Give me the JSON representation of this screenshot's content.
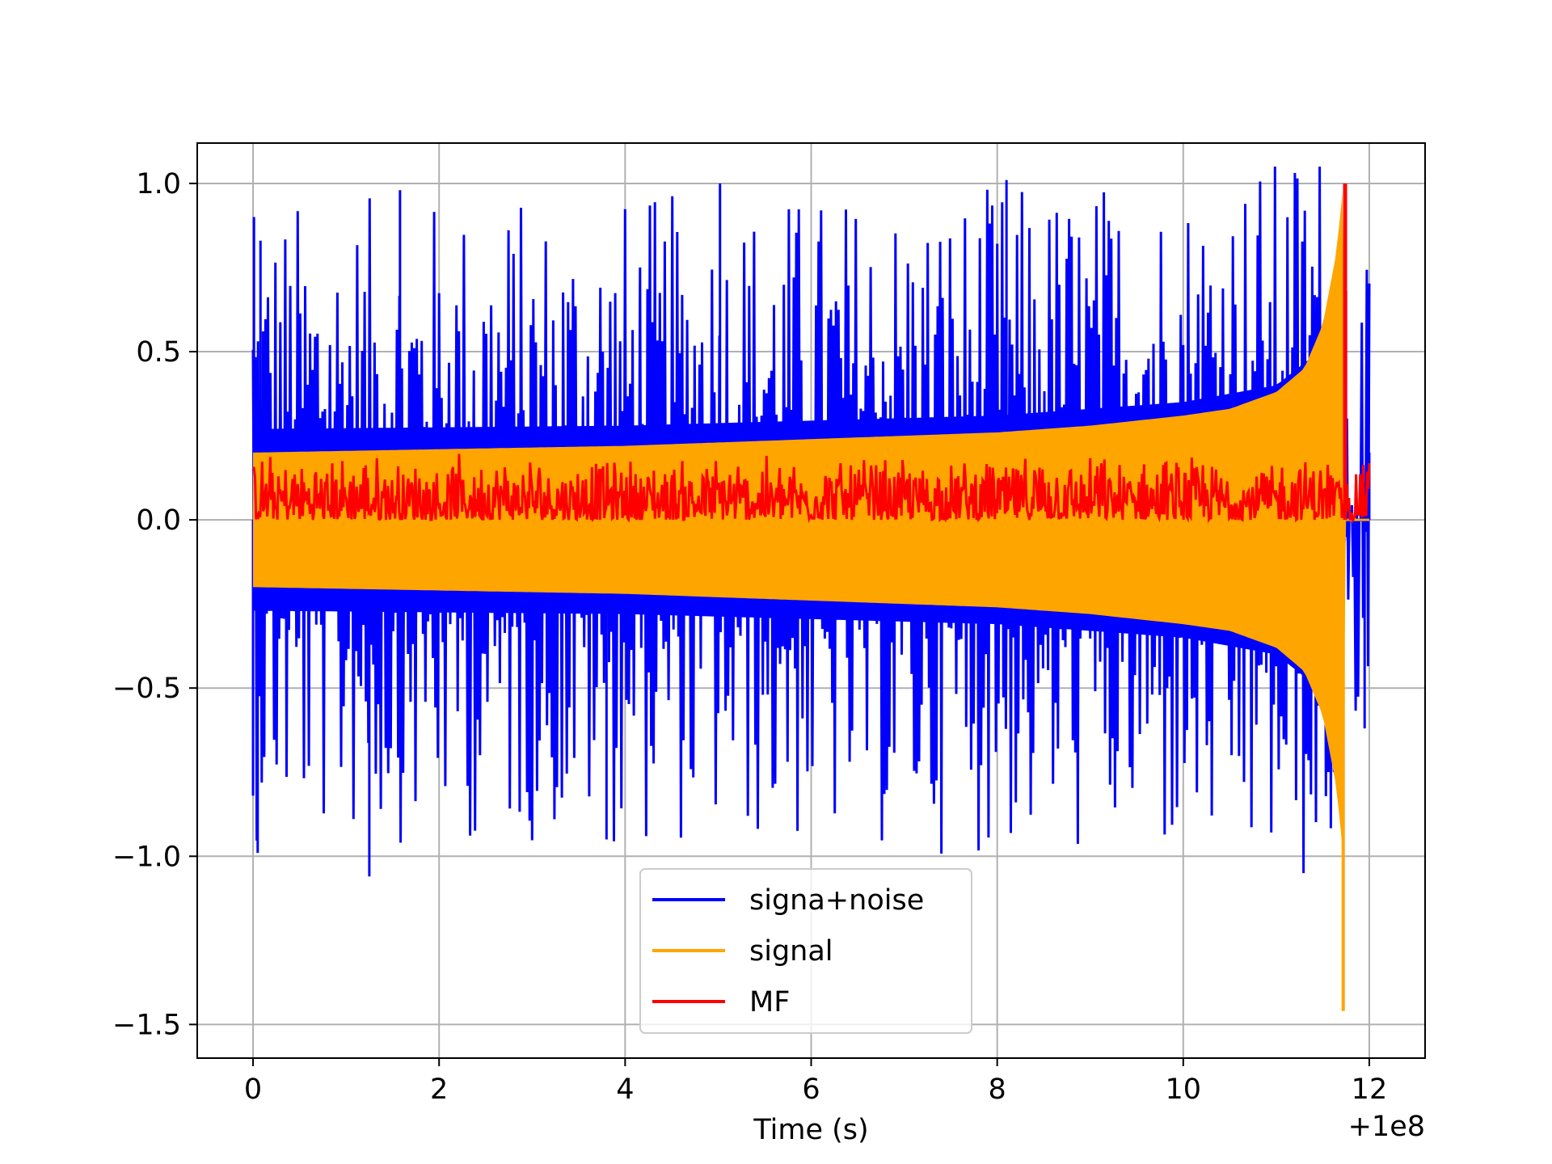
{
  "chart_data": {
    "type": "line",
    "title": "",
    "xlabel": "Time (s)",
    "ylabel": "",
    "x_offset_label": "+1e8",
    "xlim": [
      -0.6,
      12.6
    ],
    "ylim": [
      -1.6,
      1.12
    ],
    "grid": true,
    "legend_position": "lower center",
    "x_ticks": [
      0,
      2,
      4,
      6,
      8,
      10,
      12
    ],
    "x_tick_labels": [
      "0",
      "2",
      "4",
      "6",
      "8",
      "10",
      "12"
    ],
    "y_ticks": [
      1.0,
      0.5,
      0.0,
      -0.5,
      -1.0,
      -1.5
    ],
    "y_tick_labels": [
      "1.0",
      "0.5",
      "0.0",
      "−0.5",
      "−1.0",
      "−1.5"
    ],
    "series": [
      {
        "name": "signa+noise",
        "color": "#0000ff",
        "description_points": {
          "x": [
            0,
            0.01,
            0.05,
            0.08,
            1.25,
            1.58,
            3.8,
            5.02,
            8.1,
            11.62,
            11.75,
            11.95,
            12.0
          ],
          "y": [
            -0.82,
            0.9,
            -0.99,
            0.83,
            -1.06,
            0.98,
            -0.95,
            1.0,
            1.01,
            -0.75,
            0.68,
            -0.62,
            0.2
          ]
        },
        "inner_envelope": {
          "x": [
            0,
            4,
            8,
            10,
            11,
            11.5,
            11.75
          ],
          "y": [
            0.21,
            0.22,
            0.25,
            0.29,
            0.34,
            0.45,
            0.0
          ]
        }
      },
      {
        "name": "signal",
        "color": "#ffa500",
        "envelope": {
          "x": [
            0,
            2,
            4,
            6,
            8,
            9,
            10,
            10.5,
            11,
            11.3,
            11.5,
            11.65,
            11.72,
            11.75
          ],
          "y": [
            0.2,
            0.21,
            0.22,
            0.24,
            0.26,
            0.28,
            0.31,
            0.33,
            0.38,
            0.45,
            0.58,
            0.8,
            1.0,
            0.0
          ]
        },
        "min_value": {
          "x": 11.72,
          "y": -1.46
        }
      },
      {
        "name": "MF",
        "color": "#ff0000",
        "baseline": 0.06,
        "band": [
          0.0,
          0.2
        ],
        "peak": {
          "x": 11.74,
          "y": 1.0
        },
        "x_range": [
          0,
          12.0
        ]
      }
    ]
  }
}
